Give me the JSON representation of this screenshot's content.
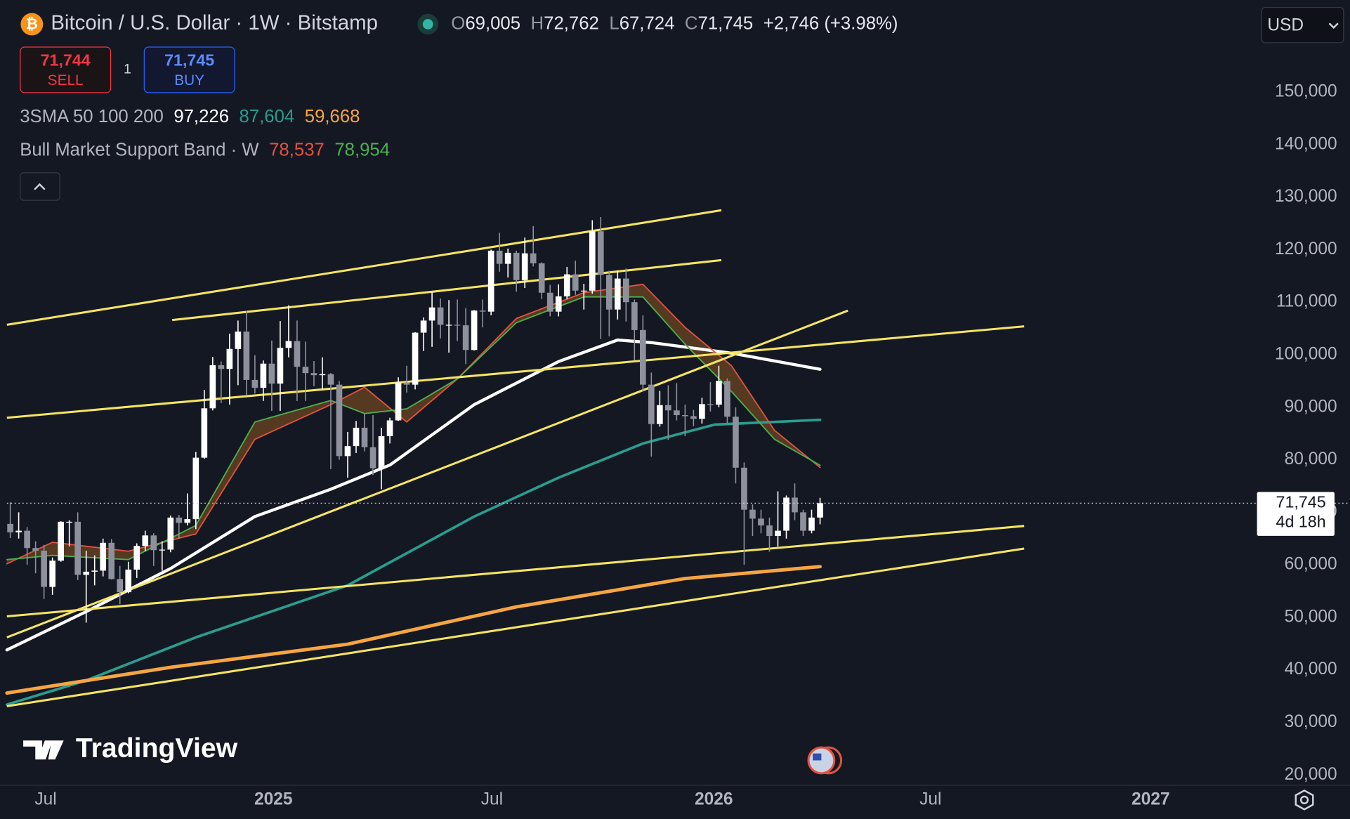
{
  "header": {
    "symbol": "Bitcoin / U.S. Dollar · 1W · Bitstamp",
    "ohlc": [
      [
        "O",
        "69,005"
      ],
      [
        "H",
        "72,762"
      ],
      [
        "L",
        "67,724"
      ],
      [
        "C",
        "71,745"
      ]
    ],
    "change": "+2,746 (+3.98%)"
  },
  "trade": {
    "sell_price": "71,744",
    "sell": "SELL",
    "quantity": "1",
    "buy_price": "71,745",
    "buy": "BUY"
  },
  "currency": "USD",
  "indicators": [
    {
      "name": "3SMA 50 100 200",
      "values": [
        "97,226",
        "87,604",
        "59,668"
      ],
      "colors": [
        "#ffffff",
        "#2a9d8f",
        "#f7a541"
      ]
    },
    {
      "name": "Bull Market Support Band · W",
      "values": [
        "78,537",
        "78,954"
      ],
      "colors": [
        "#e0533f",
        "#4caf50"
      ]
    }
  ],
  "watermark": "TradingView",
  "chart_data": {
    "type": "candlestick",
    "open": [
      67800,
      66200,
      66500,
      63200,
      62700,
      55800,
      60800,
      68200,
      68200,
      58100,
      58700,
      58900,
      64200,
      57300,
      54800,
      59100,
      63600,
      65600,
      62800,
      62900,
      69000,
      68000,
      68700,
      80400,
      89800,
      98000,
      97300,
      101100,
      104400,
      95200,
      93700,
      98300,
      94500,
      101300,
      102600,
      97700,
      96500,
      96100,
      96300,
      94300,
      80700,
      82600,
      86100,
      82400,
      78400,
      84500,
      87500,
      94700,
      94300,
      104200,
      106500,
      109000,
      105700,
      105700,
      105600,
      100900,
      108400,
      108200,
      119800,
      117300,
      119400,
      114200,
      119300,
      117400,
      111800,
      108200,
      111100,
      115300,
      112200,
      112200,
      123500,
      115200,
      108600,
      114500,
      110000,
      104700,
      94300,
      86800,
      90400,
      89400,
      88500,
      88300,
      87800,
      90600,
      90500,
      95000,
      88200,
      78500,
      70500,
      68800,
      67500,
      65500,
      66500,
      72800,
      70000,
      66500,
      69005
    ],
    "high": [
      71900,
      70000,
      67200,
      64500,
      63800,
      61400,
      68300,
      68500,
      70000,
      62700,
      61800,
      65000,
      64900,
      59800,
      60600,
      64100,
      66500,
      66000,
      64500,
      69400,
      69500,
      73600,
      81500,
      93300,
      99600,
      98700,
      104000,
      106500,
      108300,
      99900,
      98900,
      102700,
      106400,
      109400,
      106500,
      102500,
      98800,
      99500,
      96500,
      95000,
      85300,
      87400,
      88700,
      88500,
      86100,
      88000,
      95700,
      97900,
      104300,
      107100,
      111900,
      110700,
      110400,
      110500,
      108900,
      108500,
      110500,
      120000,
      123200,
      120200,
      119800,
      122300,
      124500,
      117600,
      113300,
      113400,
      116700,
      117900,
      113500,
      125600,
      126200,
      116000,
      116000,
      116400,
      110500,
      107500,
      96600,
      93100,
      94200,
      94600,
      90500,
      89500,
      91800,
      94800,
      97900,
      95500,
      90000,
      79500,
      71500,
      70500,
      69000,
      74000,
      73200,
      75500,
      70500,
      70500,
      72762
    ],
    "low": [
      65100,
      65000,
      60000,
      58400,
      53500,
      54300,
      60600,
      63500,
      57100,
      49000,
      56100,
      57800,
      57200,
      52500,
      54600,
      57500,
      62600,
      59800,
      58900,
      62400,
      65000,
      67500,
      66800,
      80200,
      89400,
      90800,
      90500,
      94200,
      92200,
      92600,
      91200,
      89300,
      89300,
      99500,
      91200,
      91200,
      94000,
      93400,
      78200,
      80000,
      76600,
      81300,
      81600,
      77100,
      74400,
      83100,
      87400,
      92800,
      93400,
      100700,
      101500,
      103100,
      100400,
      102600,
      98200,
      100800,
      105200,
      107500,
      115800,
      114700,
      112000,
      112700,
      116800,
      110600,
      107300,
      107300,
      110600,
      111400,
      108600,
      111600,
      103000,
      103500,
      106700,
      106300,
      98900,
      93000,
      80600,
      86300,
      83800,
      87500,
      84500,
      86400,
      86900,
      89200,
      90000,
      87000,
      75500,
      60000,
      65500,
      66000,
      62500,
      63500,
      65000,
      68500,
      65500,
      66000,
      67724
    ],
    "close": [
      66200,
      66500,
      63200,
      62700,
      55800,
      60800,
      68200,
      68200,
      58100,
      58700,
      58900,
      64200,
      57300,
      54800,
      59100,
      63600,
      65600,
      62800,
      62900,
      69000,
      68000,
      68700,
      80400,
      89800,
      98000,
      97300,
      101100,
      104400,
      95200,
      93700,
      98300,
      94500,
      101300,
      102600,
      97700,
      96500,
      96100,
      96300,
      94300,
      80700,
      82600,
      86100,
      82400,
      78400,
      84500,
      87500,
      94700,
      94300,
      104200,
      106500,
      109000,
      105700,
      105700,
      105600,
      100900,
      108400,
      108200,
      119800,
      117300,
      119400,
      114200,
      119300,
      117400,
      111800,
      108200,
      111100,
      115300,
      112200,
      112200,
      123500,
      115200,
      108600,
      114500,
      110000,
      104700,
      94300,
      86800,
      90400,
      89400,
      88500,
      88300,
      87800,
      90600,
      90500,
      95000,
      88200,
      78500,
      70500,
      68800,
      67500,
      65500,
      66500,
      72800,
      70000,
      66500,
      69005,
      71745
    ],
    "up_color": "#ffffff",
    "down_color": "#8e919b",
    "series": [
      {
        "color": "#ffffff",
        "width": 3.5,
        "x": [
          -0.4,
          9,
          19,
          29,
          38,
          45,
          55,
          65,
          72,
          76,
          85.5,
          96
        ],
        "values": [
          43800,
          51100,
          59300,
          69200,
          74400,
          79000,
          90500,
          98700,
          102800,
          102300,
          100300,
          97226
        ]
      },
      {
        "color": "#2a9d8f",
        "width": 3,
        "x": [
          -0.4,
          9,
          22,
          40,
          55,
          65,
          75,
          83.5,
          96
        ],
        "values": [
          33400,
          38000,
          46200,
          56100,
          69200,
          76600,
          83100,
          86700,
          87604
        ]
      },
      {
        "color": "#f7a541",
        "width": 4,
        "x": [
          -0.4,
          19,
          40,
          60,
          80,
          96
        ],
        "values": [
          35600,
          40500,
          44900,
          52000,
          57400,
          59668
        ]
      },
      {
        "color": "#e0533f",
        "width": 1.5,
        "x": [
          -0.4,
          5,
          14,
          22,
          29,
          38,
          42,
          47,
          53,
          60,
          68,
          75,
          80,
          85.5,
          90.6,
          96
        ],
        "values": [
          60200,
          64300,
          62600,
          65900,
          83900,
          90500,
          93800,
          87200,
          95400,
          106900,
          111800,
          113400,
          105200,
          97900,
          85600,
          78537
        ]
      },
      {
        "color": "#4caf50",
        "width": 1.5,
        "x": [
          -0.4,
          5,
          14,
          22,
          29,
          38,
          42,
          47,
          53,
          60,
          68,
          75,
          80,
          85.5,
          90.6,
          96
        ],
        "values": [
          61000,
          61800,
          61000,
          67500,
          87200,
          91300,
          88800,
          89700,
          95400,
          106100,
          111000,
          111000,
          102000,
          93000,
          83900,
          78954
        ]
      }
    ],
    "band_color": "#6b4420",
    "trendline_color": "#f5e462",
    "trendlines": [
      {
        "x": [
          -0.4,
          84.3
        ],
        "values": [
          105700,
          127500
        ]
      },
      {
        "x": [
          19.2,
          84.3
        ],
        "values": [
          106600,
          118000
        ]
      },
      {
        "x": [
          -0.4,
          120.2
        ],
        "values": [
          88000,
          105400
        ]
      },
      {
        "x": [
          -0.4,
          99.3
        ],
        "values": [
          46200,
          108400
        ]
      },
      {
        "x": [
          -0.4,
          120.2
        ],
        "values": [
          50200,
          67400
        ]
      },
      {
        "x": [
          -0.4,
          120.2
        ],
        "values": [
          33100,
          63100
        ]
      }
    ],
    "last_price": {
      "value": 71745,
      "label": "71,745"
    },
    "countdown": "4d 18h",
    "xlim": [
      -0.4,
      147.8
    ],
    "xticks": [
      {
        "value": 4.2,
        "label": "Jul"
      },
      {
        "value": 31.2,
        "label": "2025"
      },
      {
        "value": 57.1,
        "label": "Jul"
      },
      {
        "value": 83.4,
        "label": "2026"
      },
      {
        "value": 109.1,
        "label": "Jul"
      },
      {
        "value": 135.2,
        "label": "2027"
      }
    ],
    "ylim": [
      18200,
      167500
    ],
    "yticks": [
      {
        "value": 20000,
        "label": "20,000"
      },
      {
        "value": 30000,
        "label": "30,000"
      },
      {
        "value": 40000,
        "label": "40,000"
      },
      {
        "value": 50000,
        "label": "50,000"
      },
      {
        "value": 60000,
        "label": "60,000"
      },
      {
        "value": 70000,
        "label": "70,000"
      },
      {
        "value": 80000,
        "label": "80,000"
      },
      {
        "value": 90000,
        "label": "90,000"
      },
      {
        "value": 100000,
        "label": "100,000"
      },
      {
        "value": 110000,
        "label": "110,000"
      },
      {
        "value": 120000,
        "label": "120,000"
      },
      {
        "value": 130000,
        "label": "130,000"
      },
      {
        "value": 140000,
        "label": "140,000"
      },
      {
        "value": 150000,
        "label": "150,000"
      }
    ],
    "grid": false
  }
}
